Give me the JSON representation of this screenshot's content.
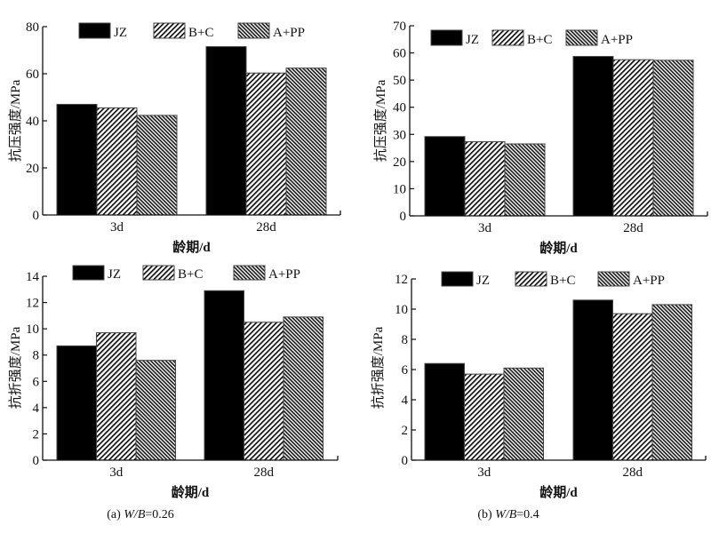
{
  "figure": {
    "captions": [
      "(a) W/B=0.26",
      "(b) W/B=0.4"
    ],
    "caption_parts": [
      {
        "prefix": "(a) ",
        "italic": "W/B",
        "suffix": "=0.26"
      },
      {
        "prefix": "(b) ",
        "italic": "W/B",
        "suffix": "=0.4"
      }
    ]
  },
  "legend_styles": {
    "JZ": {
      "fill": "#000000"
    },
    "B+C": {
      "pattern": "diag-right",
      "color": "#111111"
    },
    "A+PP": {
      "pattern": "diag-left-dense",
      "color": "#222222"
    }
  },
  "chart_data": [
    {
      "id": "compressive-wb026",
      "type": "bar",
      "title": "",
      "xlabel": "龄期/d",
      "ylabel": "抗压强度/MPa",
      "categories": [
        "3d",
        "28d"
      ],
      "ylim": [
        0,
        80
      ],
      "yticks": [
        0,
        20,
        40,
        60,
        80
      ],
      "legend": [
        "JZ",
        "B+C",
        "A+PP"
      ],
      "legend_position": "top",
      "grid": false,
      "series": [
        {
          "name": "JZ",
          "values": [
            47.0,
            71.5
          ]
        },
        {
          "name": "B+C",
          "values": [
            45.5,
            60.3
          ]
        },
        {
          "name": "A+PP",
          "values": [
            42.3,
            62.4
          ]
        }
      ]
    },
    {
      "id": "compressive-wb04",
      "type": "bar",
      "title": "",
      "xlabel": "龄期/d",
      "ylabel": "抗压强度/MPa",
      "categories": [
        "3d",
        "28d"
      ],
      "ylim": [
        0,
        70
      ],
      "yticks": [
        0,
        10,
        20,
        30,
        40,
        50,
        60,
        70
      ],
      "legend": [
        "JZ",
        "B+C",
        "A+PP"
      ],
      "legend_position": "top",
      "grid": false,
      "series": [
        {
          "name": "JZ",
          "values": [
            29.2,
            58.7
          ]
        },
        {
          "name": "B+C",
          "values": [
            27.3,
            57.5
          ]
        },
        {
          "name": "A+PP",
          "values": [
            26.5,
            57.3
          ]
        }
      ]
    },
    {
      "id": "flexural-wb026",
      "type": "bar",
      "title": "",
      "xlabel": "龄期/d",
      "ylabel": "抗折强度/MPa",
      "categories": [
        "3d",
        "28d"
      ],
      "ylim": [
        0,
        14
      ],
      "yticks": [
        0,
        2,
        4,
        6,
        8,
        10,
        12,
        14
      ],
      "legend": [
        "JZ",
        "B+C",
        "A+PP"
      ],
      "legend_position": "top",
      "grid": false,
      "caption": "(a) W/B=0.26",
      "series": [
        {
          "name": "JZ",
          "values": [
            8.7,
            12.9
          ]
        },
        {
          "name": "B+C",
          "values": [
            9.7,
            10.5
          ]
        },
        {
          "name": "A+PP",
          "values": [
            7.6,
            10.9
          ]
        }
      ]
    },
    {
      "id": "flexural-wb04",
      "type": "bar",
      "title": "",
      "xlabel": "龄期/d",
      "ylabel": "抗折强度/MPa",
      "categories": [
        "3d",
        "28d"
      ],
      "ylim": [
        0,
        12
      ],
      "yticks": [
        0,
        2,
        4,
        6,
        8,
        10,
        12
      ],
      "legend": [
        "JZ",
        "B+C",
        "A+PP"
      ],
      "legend_position": "top",
      "grid": false,
      "caption": "(b) W/B=0.4",
      "series": [
        {
          "name": "JZ",
          "values": [
            6.4,
            10.6
          ]
        },
        {
          "name": "B+C",
          "values": [
            5.7,
            9.7
          ]
        },
        {
          "name": "A+PP",
          "values": [
            6.1,
            10.3
          ]
        }
      ]
    }
  ]
}
